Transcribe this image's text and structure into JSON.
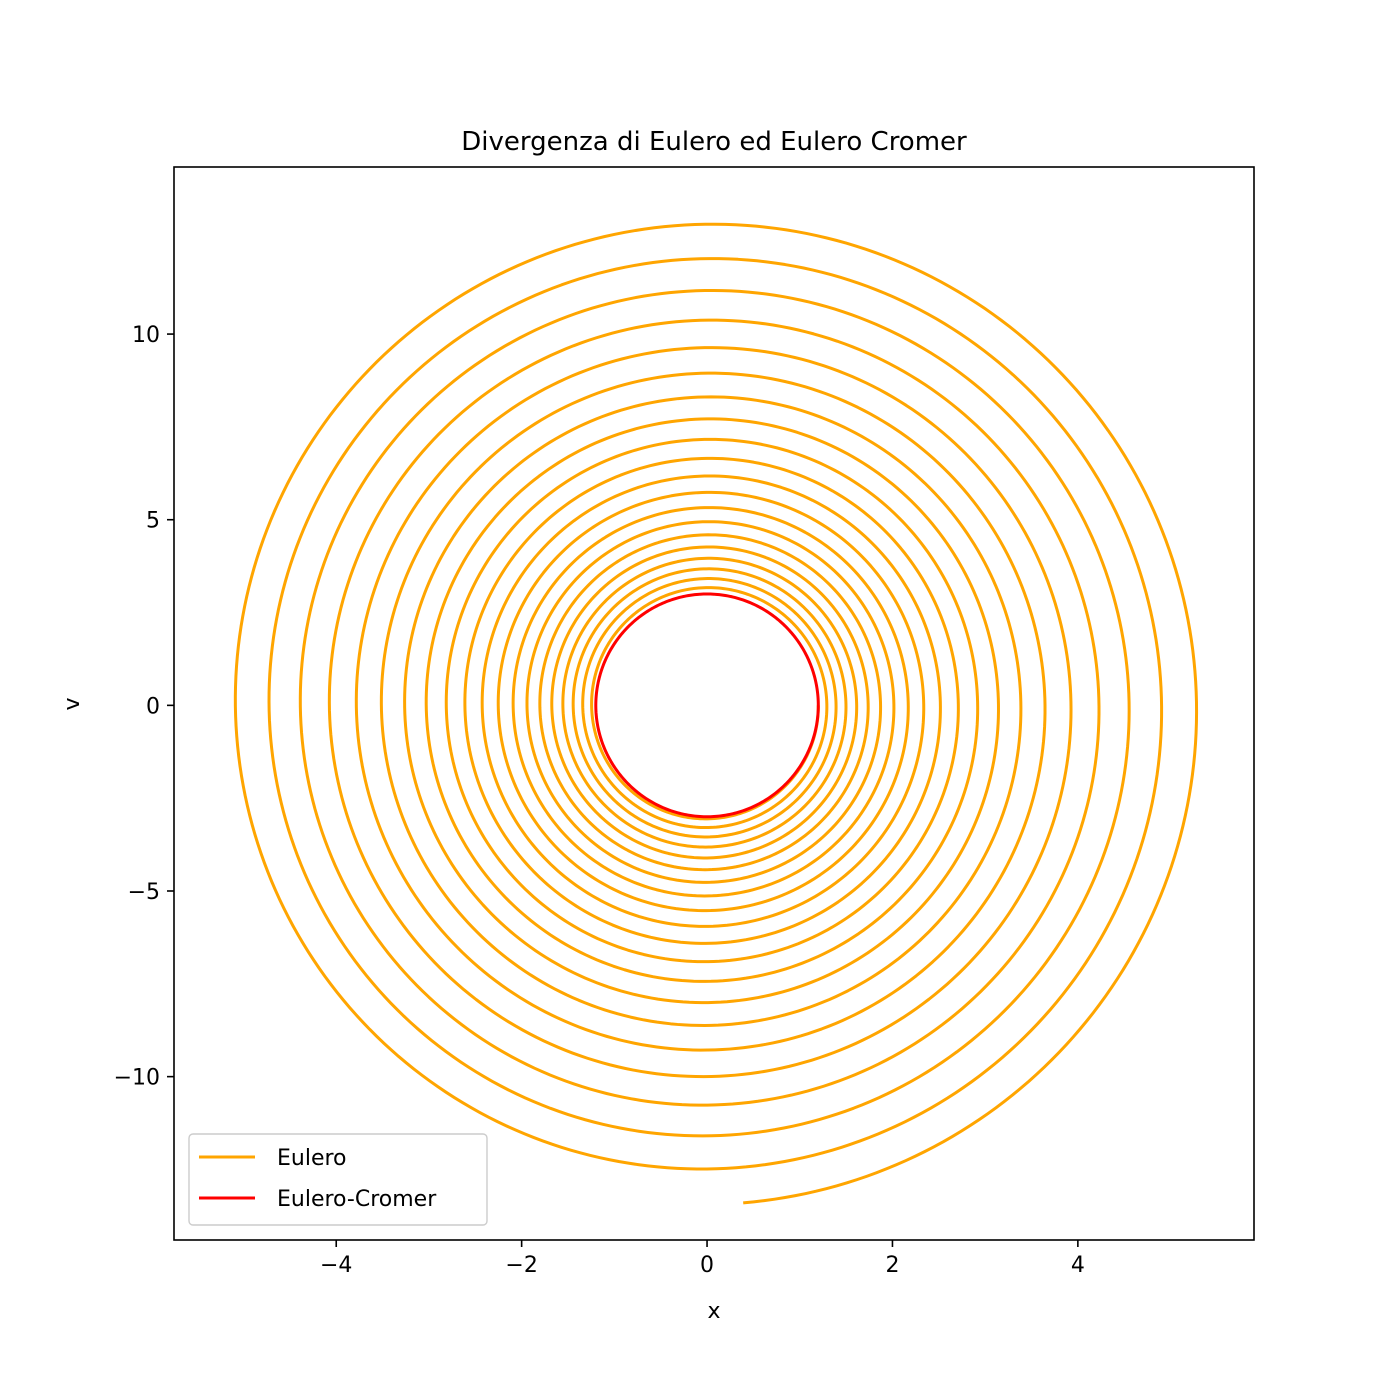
{
  "chart_data": {
    "type": "line",
    "title": "Divergenza di Eulero ed Eulero Cromer",
    "xlabel": "x",
    "ylabel": "v",
    "xlim": [
      -5.75,
      5.9
    ],
    "ylim": [
      -14.4,
      14.5
    ],
    "xticks": [
      -4,
      -2,
      0,
      2,
      4
    ],
    "yticks": [
      -10,
      -5,
      0,
      5,
      10
    ],
    "xtick_labels": [
      "−4",
      "−2",
      "0",
      "2",
      "4"
    ],
    "ytick_labels": [
      "−10",
      "−5",
      "0",
      "5",
      "10"
    ],
    "grid": false,
    "legend_position": "lower-left",
    "series": [
      {
        "name": "Eulero",
        "color": "#FFA500",
        "description": "spiral",
        "x0": 1.2,
        "v0": 0.0,
        "omega": 2.5,
        "x_end": 0.39,
        "v_end": -13.4,
        "turns": 20.8
      },
      {
        "name": "Eulero-Cromer",
        "color": "#FF0000",
        "description": "closed ellipse",
        "x_amplitude": 1.2,
        "v_amplitude": 3.0
      }
    ]
  }
}
